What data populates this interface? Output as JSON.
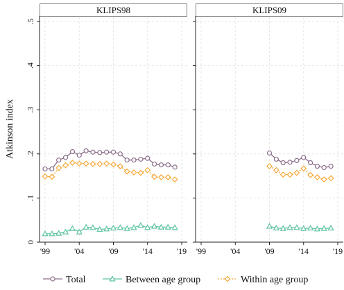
{
  "chart_data": {
    "type": "line",
    "ylabel": "Atkinson index",
    "ylim": [
      0,
      0.5
    ],
    "yticks": [
      0,
      0.1,
      0.2,
      0.3,
      0.4,
      0.5
    ],
    "ytick_labels": [
      "0",
      ".1",
      ".2",
      ".3",
      ".4",
      ".5"
    ],
    "xlim": [
      1999,
      2019
    ],
    "xticks": [
      1999,
      2004,
      2009,
      2014,
      2019
    ],
    "xtick_labels": [
      "'99",
      "'04",
      "'09",
      "'14",
      "'19"
    ],
    "grid": true,
    "legend_position": "bottom",
    "panels": [
      {
        "title": "KLIPS98",
        "x": [
          1999,
          2000,
          2001,
          2002,
          2003,
          2004,
          2005,
          2006,
          2007,
          2008,
          2009,
          2010,
          2011,
          2012,
          2013,
          2014,
          2015,
          2016,
          2017,
          2018
        ],
        "series": [
          {
            "name": "Total",
            "values": [
              0.166,
              0.166,
              0.186,
              0.192,
              0.205,
              0.197,
              0.207,
              0.204,
              0.203,
              0.204,
              0.204,
              0.2,
              0.186,
              0.186,
              0.188,
              0.19,
              0.177,
              0.175,
              0.175,
              0.17
            ]
          },
          {
            "name": "Between age group",
            "values": [
              0.019,
              0.019,
              0.02,
              0.023,
              0.031,
              0.023,
              0.034,
              0.033,
              0.029,
              0.03,
              0.032,
              0.033,
              0.031,
              0.033,
              0.038,
              0.033,
              0.036,
              0.034,
              0.034,
              0.033
            ]
          },
          {
            "name": "Within age group",
            "values": [
              0.149,
              0.148,
              0.168,
              0.174,
              0.18,
              0.178,
              0.178,
              0.177,
              0.177,
              0.178,
              0.176,
              0.172,
              0.16,
              0.158,
              0.157,
              0.163,
              0.148,
              0.147,
              0.147,
              0.142
            ]
          }
        ]
      },
      {
        "title": "KLIPS09",
        "x": [
          2009,
          2010,
          2011,
          2012,
          2013,
          2014,
          2015,
          2016,
          2017,
          2018
        ],
        "series": [
          {
            "name": "Total",
            "values": [
              0.202,
              0.188,
              0.18,
              0.181,
              0.185,
              0.192,
              0.18,
              0.172,
              0.169,
              0.172
            ]
          },
          {
            "name": "Between age group",
            "values": [
              0.036,
              0.032,
              0.031,
              0.033,
              0.033,
              0.031,
              0.032,
              0.03,
              0.031,
              0.032
            ]
          },
          {
            "name": "Within age group",
            "values": [
              0.172,
              0.163,
              0.153,
              0.153,
              0.157,
              0.167,
              0.152,
              0.147,
              0.142,
              0.145
            ]
          }
        ]
      }
    ],
    "legend": [
      {
        "name": "Total",
        "color": "#8c6f8c",
        "marker": "circle",
        "dash": "solid"
      },
      {
        "name": "Between age group",
        "color": "#5ec4a3",
        "marker": "triangle",
        "dash": "solid"
      },
      {
        "name": "Within age group",
        "color": "#f5a83a",
        "marker": "diamond",
        "dash": "dash"
      }
    ]
  }
}
